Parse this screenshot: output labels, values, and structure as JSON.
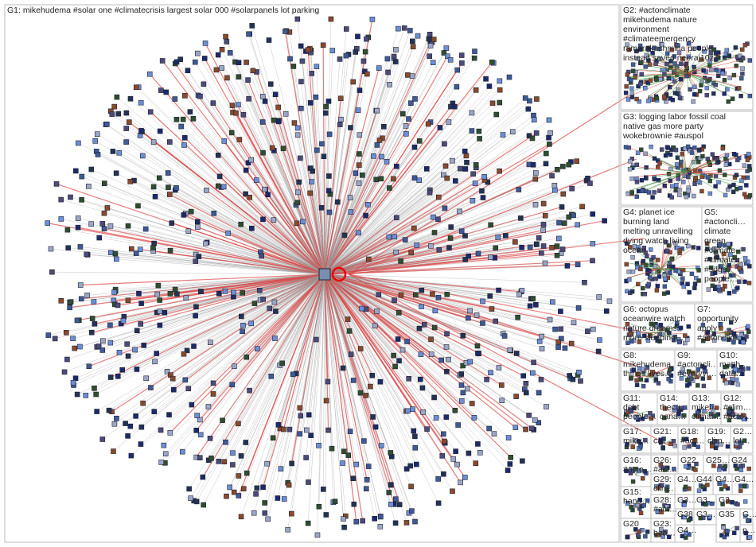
{
  "groups": [
    {
      "lines": [
        "G1: mikehudema #solar one #climatecrisis largest solar 000 #solarpanels lot parking"
      ]
    },
    {
      "lines": [
        "G2: #actonclimate",
        "mikehudema nature",
        "environment",
        "#climateemergency",
        "ramprakashmina people",
        "instead saved neeraj10z"
      ]
    },
    {
      "lines": [
        "G3: logging labor fossil coal",
        "native gas more party",
        "wokebrownie #auspol"
      ]
    },
    {
      "lines": [
        "G4: planet ice",
        "burning land",
        "melting unravelling",
        "dying watch living",
        "ocean"
      ]
    },
    {
      "lines": [
        "G5:",
        "#actoncli…",
        "climate",
        "green",
        "#climate",
        "#climatec…",
        "#sdgs",
        "people…"
      ]
    },
    {
      "lines": [
        "G6: octopus",
        "oceanwire watch",
        "nature dreams",
        "more sleeping…"
      ]
    },
    {
      "lines": [
        "G7:",
        "opportunity",
        "apply",
        "#actonclim…"
      ]
    },
    {
      "lines": [
        "G8:",
        "mikehudema",
        "things lives…"
      ]
    },
    {
      "lines": [
        "G9:",
        "#actoncli…",
        "#everyvi…"
      ]
    },
    {
      "lines": [
        "G10:",
        "matth…",
        "data…"
      ]
    },
    {
      "lines": [
        "G11:",
        "debt",
        "people…"
      ]
    },
    {
      "lines": [
        "G14:",
        "thecu…",
        "cana…"
      ]
    },
    {
      "lines": [
        "G13:",
        "mikeh…",
        "climat…"
      ]
    },
    {
      "lines": [
        "G12:",
        "#clim…",
        "#acto…"
      ]
    },
    {
      "lines": [
        "G17:",
        "mike…"
      ]
    },
    {
      "lines": [
        "G21:",
        "call…"
      ]
    },
    {
      "lines": [
        "G18:",
        "#act…"
      ]
    },
    {
      "lines": [
        "G19:",
        "clim…"
      ]
    },
    {
      "lines": [
        "G2…",
        "let…"
      ]
    },
    {
      "lines": [
        "G16:",
        "#acto…"
      ]
    },
    {
      "lines": [
        "G26:",
        "#act…"
      ]
    },
    {
      "lines": [
        "G22"
      ]
    },
    {
      "lines": [
        "G25…"
      ]
    },
    {
      "lines": [
        "G24"
      ]
    },
    {
      "lines": [
        "G29:",
        "clim…"
      ]
    },
    {
      "lines": [
        "G4…"
      ]
    },
    {
      "lines": [
        "G44"
      ]
    },
    {
      "lines": [
        "G4…"
      ]
    },
    {
      "lines": [
        "G4…"
      ]
    },
    {
      "lines": [
        "G15:",
        "hand…"
      ]
    },
    {
      "lines": [
        "G28:",
        "#act…"
      ]
    },
    {
      "lines": [
        "G3…"
      ]
    },
    {
      "lines": [
        "G3…"
      ]
    },
    {
      "lines": [
        "G3…"
      ]
    },
    {
      "lines": [
        "G20"
      ]
    },
    {
      "lines": [
        "G23:",
        "bea…"
      ]
    },
    {
      "lines": [
        "G38"
      ]
    },
    {
      "lines": [
        "G4…"
      ]
    },
    {
      "lines": [
        "G3…"
      ]
    },
    {
      "lines": [
        "G35"
      ]
    },
    {
      "lines": [
        "G…"
      ]
    },
    {
      "lines": [
        "p…"
      ]
    }
  ]
}
